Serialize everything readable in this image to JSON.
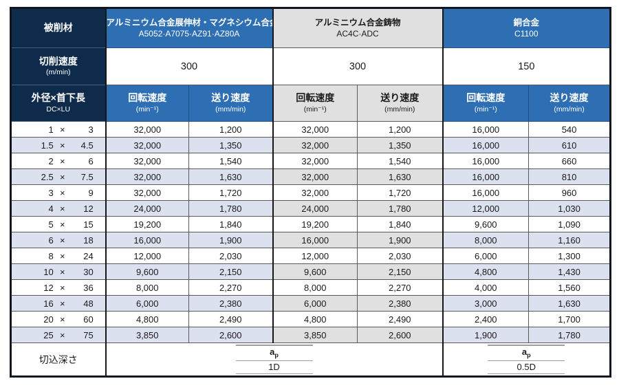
{
  "table": {
    "corner_label": "被削材",
    "cutting_speed": {
      "label": "切削速度",
      "unit": "(m/min)"
    },
    "size_header": {
      "label": "外径×首下長",
      "sub": "DC×LU"
    },
    "materials": [
      {
        "name": "アルミニウム合金展伸材・マグネシウム合金",
        "grades": "A5052·A7075·AZ91·AZ80A",
        "speed": "300"
      },
      {
        "name": "アルミニウム合金鋳物",
        "grades": "AC4C·ADC",
        "speed": "300"
      },
      {
        "name": "銅合金",
        "grades": "C1100",
        "speed": "150"
      }
    ],
    "sub_headers": {
      "rotation": {
        "label": "回転速度",
        "unit": "(min⁻¹)"
      },
      "feed": {
        "label": "送り速度",
        "unit": "(mm/min)"
      }
    },
    "rows": [
      {
        "dc": "1",
        "lu": "3",
        "values": [
          "32,000",
          "1,200",
          "32,000",
          "1,200",
          "16,000",
          "540"
        ]
      },
      {
        "dc": "1.5",
        "lu": "4.5",
        "values": [
          "32,000",
          "1,350",
          "32,000",
          "1,350",
          "16,000",
          "610"
        ]
      },
      {
        "dc": "2",
        "lu": "6",
        "values": [
          "32,000",
          "1,540",
          "32,000",
          "1,540",
          "16,000",
          "660"
        ]
      },
      {
        "dc": "2.5",
        "lu": "7.5",
        "values": [
          "32,000",
          "1,630",
          "32,000",
          "1,630",
          "16,000",
          "810"
        ]
      },
      {
        "dc": "3",
        "lu": "9",
        "values": [
          "32,000",
          "1,720",
          "32,000",
          "1,720",
          "16,000",
          "960"
        ]
      },
      {
        "dc": "4",
        "lu": "12",
        "values": [
          "24,000",
          "1,780",
          "24,000",
          "1,780",
          "12,000",
          "1,030"
        ]
      },
      {
        "dc": "5",
        "lu": "15",
        "values": [
          "19,200",
          "1,840",
          "19,200",
          "1,840",
          "9,600",
          "1,090"
        ]
      },
      {
        "dc": "6",
        "lu": "18",
        "values": [
          "16,000",
          "1,900",
          "16,000",
          "1,900",
          "8,000",
          "1,160"
        ]
      },
      {
        "dc": "8",
        "lu": "24",
        "values": [
          "12,000",
          "2,030",
          "12,000",
          "2,030",
          "6,000",
          "1,300"
        ]
      },
      {
        "dc": "10",
        "lu": "30",
        "values": [
          "9,600",
          "2,150",
          "9,600",
          "2,150",
          "4,800",
          "1,430"
        ]
      },
      {
        "dc": "12",
        "lu": "36",
        "values": [
          "8,000",
          "2,270",
          "8,000",
          "2,270",
          "4,000",
          "1,560"
        ]
      },
      {
        "dc": "16",
        "lu": "48",
        "values": [
          "6,000",
          "2,380",
          "6,000",
          "2,380",
          "3,000",
          "1,630"
        ]
      },
      {
        "dc": "20",
        "lu": "60",
        "values": [
          "4,800",
          "2,490",
          "4,800",
          "2,490",
          "2,400",
          "1,700"
        ]
      },
      {
        "dc": "25",
        "lu": "75",
        "values": [
          "3,850",
          "2,600",
          "3,850",
          "2,600",
          "1,900",
          "1,780"
        ]
      }
    ],
    "multiply_sign": "×",
    "depth_of_cut": {
      "label": "切込深さ",
      "left": {
        "symbol": "a",
        "sub": "p",
        "value": "1D"
      },
      "right": {
        "symbol": "a",
        "sub": "p",
        "value": "0.5D"
      }
    }
  },
  "colors": {
    "navy": "#0e2b4b",
    "blue": "#2e6fb4",
    "gray_header": "#e0e0e0",
    "stripe_blue": "#dce1f0",
    "stripe_gray": "#e0e0e0",
    "outer_border": "#10161f"
  }
}
